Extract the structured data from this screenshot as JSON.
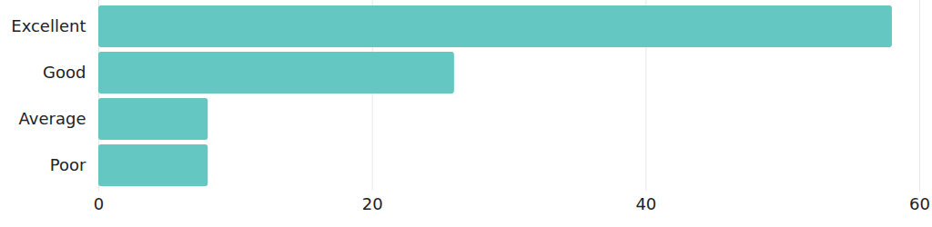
{
  "chart_data": {
    "type": "bar",
    "orientation": "horizontal",
    "categories": [
      "Excellent",
      "Good",
      "Average",
      "Poor"
    ],
    "values": [
      58,
      26,
      8,
      8
    ],
    "color": "#64c7c2",
    "xlim": [
      0,
      60
    ],
    "xticks": [
      0,
      20,
      40,
      60
    ],
    "grid": true
  }
}
